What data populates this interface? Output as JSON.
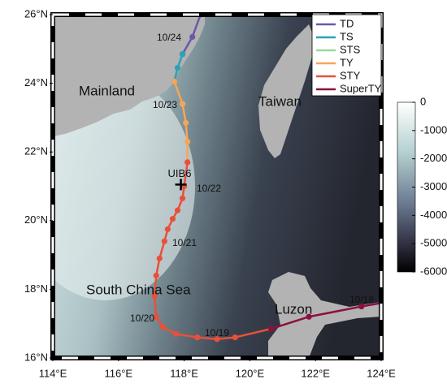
{
  "chart_data": {
    "type": "track",
    "xlim": [
      114,
      124
    ],
    "ylim": [
      16,
      26
    ],
    "xticks": [
      {
        "value": 114,
        "label": "114°E"
      },
      {
        "value": 116,
        "label": "116°E"
      },
      {
        "value": 118,
        "label": "118°E"
      },
      {
        "value": 120,
        "label": "120°E"
      },
      {
        "value": 122,
        "label": "122°E"
      },
      {
        "value": 124,
        "label": "124°E"
      }
    ],
    "yticks": [
      {
        "value": 16,
        "label": "16°N"
      },
      {
        "value": 18,
        "label": "18°N"
      },
      {
        "value": 20,
        "label": "20°N"
      },
      {
        "value": 22,
        "label": "22°N"
      },
      {
        "value": 24,
        "label": "24°N"
      },
      {
        "value": 26,
        "label": "26°N"
      }
    ],
    "legend": "upper right",
    "series": [
      {
        "name": "TD",
        "color": "#6a58a8",
        "x": [
          118.5,
          118.25,
          117.95
        ],
        "y": [
          26.0,
          25.35,
          24.85
        ]
      },
      {
        "name": "TS",
        "color": "#2aa3b3",
        "x": [
          117.95,
          117.8,
          117.7
        ],
        "y": [
          24.85,
          24.45,
          24.05
        ]
      },
      {
        "name": "STS",
        "color": "#9ad7a3",
        "x": [],
        "y": []
      },
      {
        "name": "TY",
        "color": "#f5a55a",
        "x": [
          117.7,
          117.95,
          118.05,
          118.1,
          118.1
        ],
        "y": [
          24.05,
          23.4,
          22.85,
          22.3,
          21.7
        ]
      },
      {
        "name": "STY",
        "color": "#e8503a",
        "x": [
          118.1,
          118.0,
          117.95,
          117.8,
          117.65,
          117.5,
          117.4,
          117.25,
          117.15,
          117.1,
          117.15,
          117.35,
          117.75,
          118.4,
          119.0,
          119.55,
          120.65
        ],
        "y": [
          21.7,
          21.0,
          20.65,
          20.3,
          20.05,
          19.75,
          19.4,
          18.9,
          18.4,
          17.8,
          17.2,
          16.9,
          16.7,
          16.6,
          16.55,
          16.6,
          16.85
        ]
      },
      {
        "name": "SuperTY",
        "color": "#8b1040",
        "x": [
          120.65,
          121.8,
          123.4,
          124.0
        ],
        "y": [
          16.85,
          17.2,
          17.5,
          17.6
        ]
      }
    ],
    "station": {
      "name": "UIB6",
      "x": 117.9,
      "y": 21.05
    },
    "annotations": [
      "10/24",
      "10/23",
      "10/22",
      "10/21",
      "10/20",
      "10/19",
      "10/18",
      "Mainland",
      "Taiwan",
      "South China Sea",
      "Luzon"
    ],
    "colorbar": {
      "clim": [
        -6000,
        0
      ],
      "ticks": [
        0,
        -1000,
        -2000,
        -3000,
        -4000,
        -5000,
        -6000
      ]
    }
  }
}
